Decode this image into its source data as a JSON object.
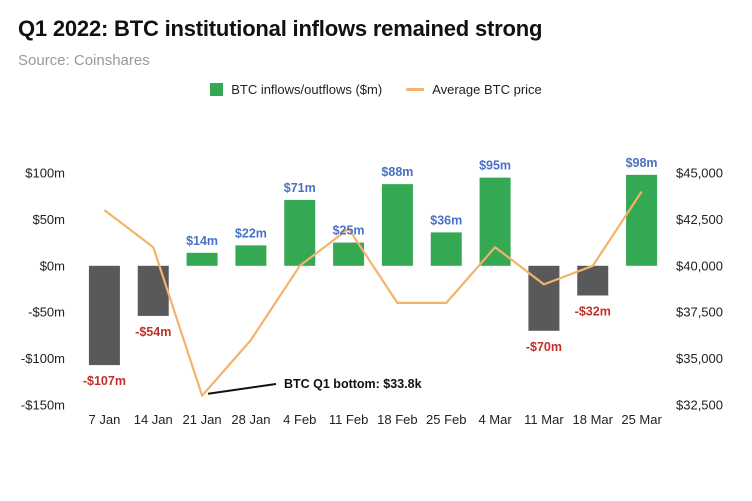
{
  "title": "Q1 2022: BTC institutional inflows remained strong",
  "subtitle": "Source: Coinshares",
  "colors": {
    "positive_bar": "#34a853",
    "negative_bar": "#595959",
    "positive_label": "#4a72c4",
    "negative_label": "#c0312b",
    "line": "#f4b36a",
    "axis_text": "#222222"
  },
  "chart_data": {
    "type": "bar",
    "categories": [
      "7 Jan",
      "14 Jan",
      "21 Jan",
      "28 Jan",
      "4 Feb",
      "11 Feb",
      "18 Feb",
      "25 Feb",
      "4 Mar",
      "11 Mar",
      "18 Mar",
      "25 Mar"
    ],
    "series": [
      {
        "name": "BTC inflows/outflows ($m)",
        "type": "bar",
        "axis": "left",
        "values": [
          -107,
          -54,
          14,
          22,
          71,
          25,
          88,
          36,
          95,
          -70,
          -32,
          98
        ],
        "labels": [
          "-$107m",
          "-$54m",
          "$14m",
          "$22m",
          "$71m",
          "$25m",
          "$88m",
          "$36m",
          "$95m",
          "-$70m",
          "-$32m",
          "$98m"
        ]
      },
      {
        "name": "Average BTC price",
        "type": "line",
        "axis": "right",
        "values": [
          43000,
          41000,
          33000,
          36000,
          40000,
          42000,
          38000,
          38000,
          41000,
          39000,
          40000,
          44000
        ]
      }
    ],
    "y_left": {
      "min": -150,
      "max": 100,
      "ticks": [
        -150,
        -100,
        -50,
        0,
        50,
        100
      ],
      "tick_labels": [
        "-$150m",
        "-$100m",
        "-$50m",
        "$0m",
        "$50m",
        "$100m"
      ]
    },
    "y_right": {
      "min": 32500,
      "max": 45000,
      "ticks": [
        32500,
        35000,
        37500,
        40000,
        42500,
        45000
      ],
      "tick_labels": [
        "$32,500",
        "$35,000",
        "$37,500",
        "$40,000",
        "$42,500",
        "$45,000"
      ]
    },
    "annotation": {
      "text": "BTC Q1 bottom: $33.8k",
      "category_index": 2
    },
    "grid": false,
    "legend_position": "top-center"
  }
}
